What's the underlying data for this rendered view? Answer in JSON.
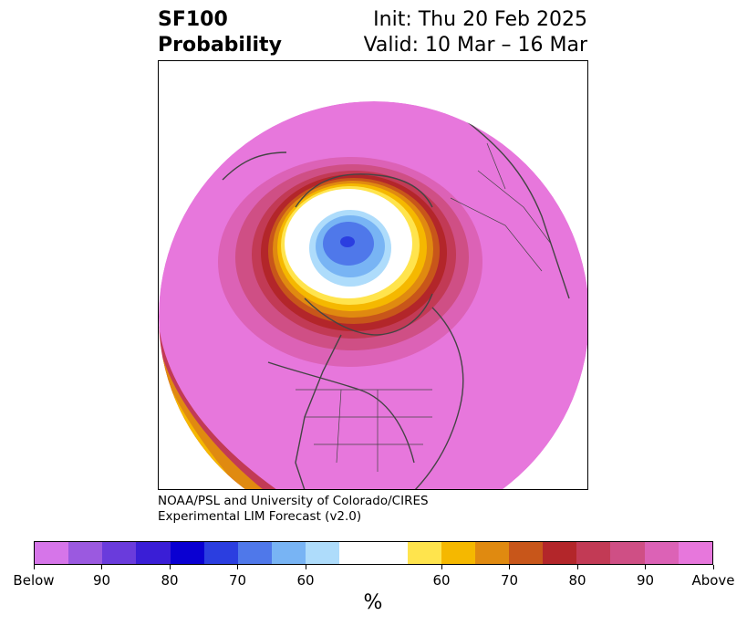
{
  "title": {
    "left_line1": "SF100",
    "left_line2": "Probability",
    "right_line1": "Init: Thu 20 Feb 2025",
    "right_line2": "Valid: 10 Mar – 16 Mar"
  },
  "credit": {
    "line1": "NOAA/PSL and University of Colorado/CIRES",
    "line2": "Experimental LIM Forecast (v2.0)"
  },
  "colorbar": {
    "unit": "%",
    "colors": [
      "#d675e9",
      "#9b59e0",
      "#6a3bdc",
      "#3a1ed6",
      "#0a00d2",
      "#2b3ee0",
      "#4f78ea",
      "#78b4f4",
      "#aedcfb",
      "#ffffff",
      "#ffffff",
      "#ffe44d",
      "#f5b800",
      "#e08a10",
      "#c8561a",
      "#b3262a",
      "#c23a55",
      "#cf4f85",
      "#dc62b6",
      "#e777dc"
    ],
    "tick_labels": [
      "Below",
      "90",
      "80",
      "70",
      "60",
      "60",
      "70",
      "80",
      "90",
      "Above"
    ]
  },
  "map": {
    "background_color": "#e777dc",
    "border_color": "#444444"
  }
}
